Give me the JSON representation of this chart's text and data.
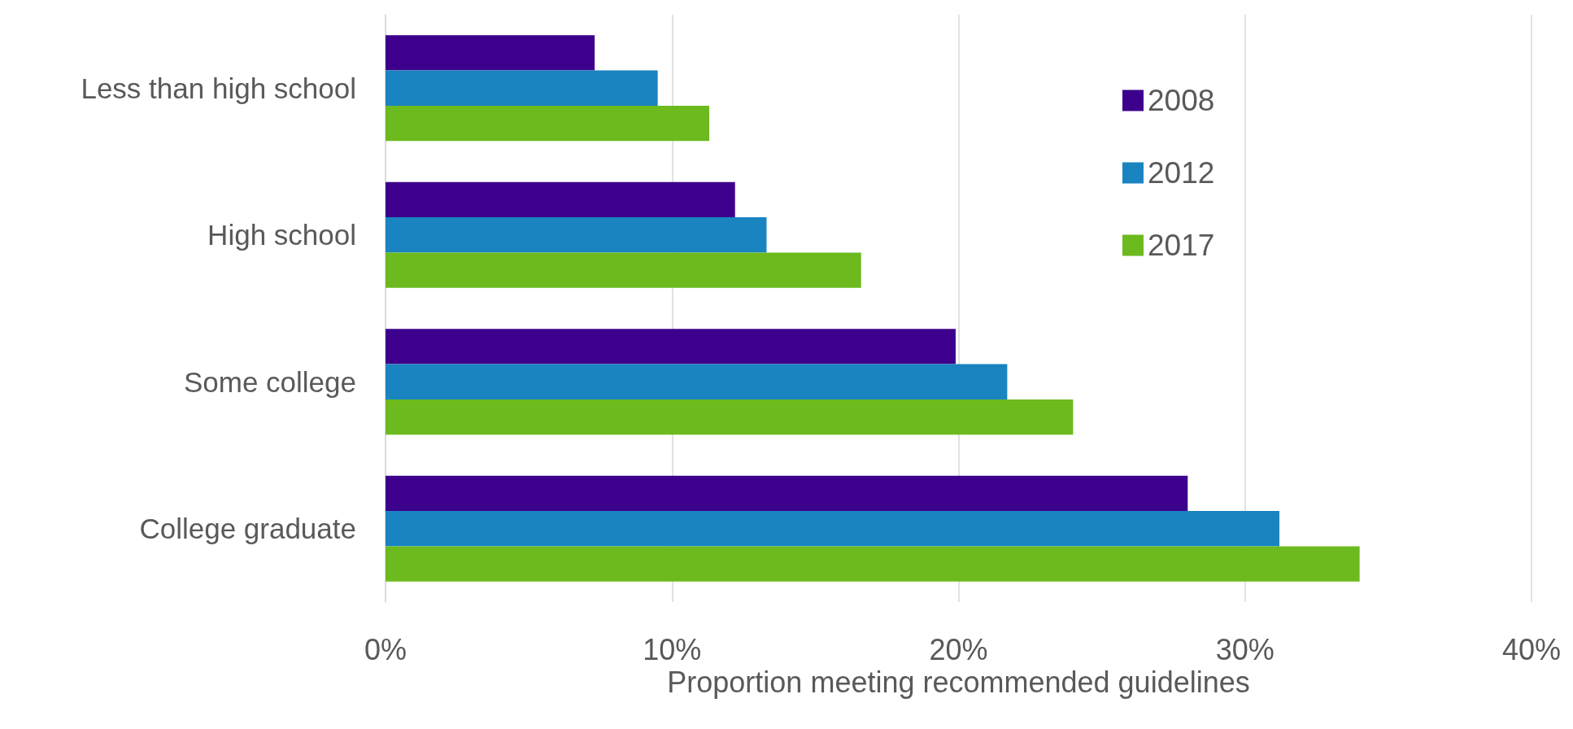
{
  "chart_data": {
    "type": "bar",
    "orientation": "horizontal",
    "xlabel": "Proportion meeting recommended guidelines",
    "categories": [
      "Less than high school",
      "High school",
      "Some college",
      "College graduate"
    ],
    "series": [
      {
        "name": "2008",
        "color": "#3c008c",
        "values": [
          7.3,
          12.2,
          19.9,
          28.0
        ]
      },
      {
        "name": "2012",
        "color": "#1a84c0",
        "values": [
          9.5,
          13.3,
          21.7,
          31.2
        ]
      },
      {
        "name": "2017",
        "color": "#6cba1e",
        "values": [
          11.3,
          16.6,
          24.0,
          34.0
        ]
      }
    ],
    "xlim": [
      0,
      40
    ],
    "xticks": [
      {
        "value": 0,
        "label": "0%"
      },
      {
        "value": 10,
        "label": "10%"
      },
      {
        "value": 20,
        "label": "20%"
      },
      {
        "value": 30,
        "label": "30%"
      },
      {
        "value": 40,
        "label": "40%"
      }
    ],
    "grid": "x",
    "legend": "top right"
  }
}
